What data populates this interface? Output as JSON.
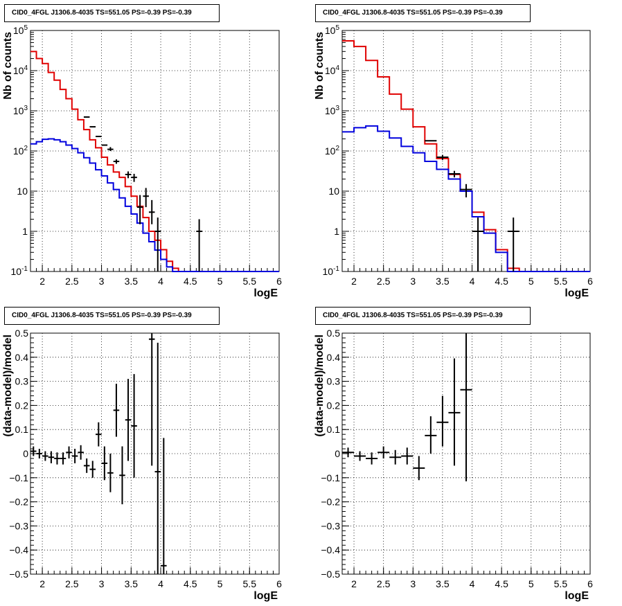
{
  "chart_data": [
    {
      "id": "p1",
      "type": "step",
      "title": "CID0_4FGL J1306.8-4035 TS=551.05 PS=-0.39 PS=-0.39",
      "xlabel": "logE",
      "ylabel": "Nb of counts",
      "xlim": [
        1.8,
        6
      ],
      "ylim": [
        0.1,
        100000
      ],
      "yscale": "log",
      "grid": true,
      "x_ticks": [
        "2",
        "2.5",
        "3",
        "3.5",
        "4",
        "4.5",
        "5",
        "5.5",
        "6"
      ],
      "y_ticks": [
        "10^-1",
        "1",
        "10",
        "10^2",
        "10^3",
        "10^4",
        "10^5"
      ],
      "colors": {
        "total": "#e00000",
        "source": "#0000dd",
        "data": "#000000"
      },
      "series": [
        {
          "role": "total",
          "x_edges": [
            1.8,
            1.9,
            2.0,
            2.1,
            2.2,
            2.3,
            2.4,
            2.5,
            2.6,
            2.7,
            2.8,
            2.9,
            3.0,
            3.1,
            3.2,
            3.3,
            3.4,
            3.5,
            3.6,
            3.7,
            3.8,
            3.9,
            4.0,
            4.1,
            4.2,
            4.3,
            4.4,
            4.5,
            4.6,
            6.0
          ],
          "values": [
            30000,
            20000,
            15000,
            9000,
            5800,
            3400,
            2000,
            1100,
            600,
            340,
            190,
            120,
            70,
            45,
            30,
            22,
            13,
            7.5,
            4.2,
            2.2,
            1.0,
            0.6,
            0.35,
            0.18,
            0.12,
            0.1,
            0.1,
            0.1,
            0.1
          ]
        },
        {
          "role": "source",
          "x_edges": [
            1.8,
            1.9,
            2.0,
            2.1,
            2.2,
            2.3,
            2.4,
            2.5,
            2.6,
            2.7,
            2.8,
            2.9,
            3.0,
            3.1,
            3.2,
            3.3,
            3.4,
            3.5,
            3.6,
            3.7,
            3.8,
            3.9,
            4.0,
            4.1,
            4.2,
            4.3,
            4.4,
            4.5,
            4.6,
            6.0
          ],
          "values": [
            150,
            170,
            195,
            200,
            190,
            170,
            140,
            115,
            90,
            68,
            50,
            34,
            24,
            16,
            11,
            6.8,
            4.2,
            2.7,
            1.6,
            0.9,
            0.55,
            0.34,
            0.2,
            0.13,
            0.1,
            0.1,
            0.1,
            0.1,
            0.1
          ]
        }
      ],
      "points": [
        {
          "x": 2.75,
          "y": 700,
          "xerr": 0.05,
          "ylo": 700,
          "yhi": 700
        },
        {
          "x": 2.85,
          "y": 400,
          "xerr": 0.05,
          "ylo": 400,
          "yhi": 400
        },
        {
          "x": 2.95,
          "y": 230,
          "xerr": 0.05,
          "ylo": 230,
          "yhi": 230
        },
        {
          "x": 3.05,
          "y": 140,
          "xerr": 0.05,
          "ylo": 140,
          "yhi": 140
        },
        {
          "x": 3.15,
          "y": 110,
          "xerr": 0.05,
          "ylo": 100,
          "yhi": 125
        },
        {
          "x": 3.25,
          "y": 55,
          "xerr": 0.05,
          "ylo": 48,
          "yhi": 62
        },
        {
          "x": 3.45,
          "y": 26,
          "xerr": 0.05,
          "ylo": 21,
          "yhi": 31
        },
        {
          "x": 3.55,
          "y": 22,
          "xerr": 0.05,
          "ylo": 17,
          "yhi": 27
        },
        {
          "x": 3.65,
          "y": 4,
          "xerr": 0.05,
          "ylo": 1.5,
          "yhi": 8
        },
        {
          "x": 3.75,
          "y": 7.5,
          "xerr": 0.05,
          "ylo": 4,
          "yhi": 12
        },
        {
          "x": 3.85,
          "y": 3,
          "xerr": 0.05,
          "ylo": 1.5,
          "yhi": 6
        },
        {
          "x": 3.95,
          "y": 1,
          "xerr": 0.05,
          "ylo": 0.1,
          "yhi": 2.2
        },
        {
          "x": 4.65,
          "y": 1,
          "xerr": 0.05,
          "ylo": 0.1,
          "yhi": 2
        }
      ]
    },
    {
      "id": "p2",
      "type": "step",
      "title": "CID0_4FGL J1306.8-4035 TS=551.05 PS=-0.39 PS=-0.39",
      "xlabel": "logE",
      "ylabel": "Nb of counts",
      "xlim": [
        1.8,
        6
      ],
      "ylim": [
        0.1,
        100000
      ],
      "yscale": "log",
      "grid": true,
      "x_ticks": [
        "2",
        "2.5",
        "3",
        "3.5",
        "4",
        "4.5",
        "5",
        "5.5",
        "6"
      ],
      "y_ticks": [
        "10^-1",
        "1",
        "10",
        "10^2",
        "10^3",
        "10^4",
        "10^5"
      ],
      "colors": {
        "total": "#e00000",
        "source": "#0000dd",
        "data": "#000000"
      },
      "series": [
        {
          "role": "total",
          "x_edges": [
            1.8,
            2.0,
            2.2,
            2.4,
            2.6,
            2.8,
            3.0,
            3.2,
            3.4,
            3.6,
            3.8,
            4.0,
            4.2,
            4.4,
            4.6,
            4.8,
            6.0
          ],
          "values": [
            55000,
            40000,
            18000,
            7000,
            2600,
            1100,
            400,
            150,
            65,
            26,
            10,
            3,
            1.1,
            0.35,
            0.12,
            0.1
          ]
        },
        {
          "role": "source",
          "x_edges": [
            1.8,
            2.0,
            2.2,
            2.4,
            2.6,
            2.8,
            3.0,
            3.2,
            3.4,
            3.6,
            3.8,
            4.0,
            4.2,
            4.4,
            4.6,
            4.8,
            6.0
          ],
          "values": [
            300,
            380,
            420,
            310,
            210,
            130,
            90,
            55,
            35,
            20,
            10,
            2.3,
            0.9,
            0.3,
            0.1,
            0.1
          ]
        }
      ],
      "points": [
        {
          "x": 3.3,
          "y": 180,
          "xerr": 0.1,
          "ylo": 180,
          "yhi": 180
        },
        {
          "x": 3.5,
          "y": 70,
          "xerr": 0.1,
          "ylo": 60,
          "yhi": 80
        },
        {
          "x": 3.7,
          "y": 27,
          "xerr": 0.1,
          "ylo": 22,
          "yhi": 32
        },
        {
          "x": 3.9,
          "y": 11,
          "xerr": 0.1,
          "ylo": 7,
          "yhi": 15
        },
        {
          "x": 4.1,
          "y": 1,
          "xerr": 0.1,
          "ylo": 0.1,
          "yhi": 2.2
        },
        {
          "x": 4.7,
          "y": 1,
          "xerr": 0.1,
          "ylo": 0.1,
          "yhi": 2.2
        }
      ]
    },
    {
      "id": "p3",
      "type": "errorbar",
      "title": "CID0_4FGL J1306.8-4035 TS=551.05 PS=-0.39 PS=-0.39",
      "xlabel": "logE",
      "ylabel": "(data-model)/model",
      "xlim": [
        1.8,
        6
      ],
      "ylim": [
        -0.5,
        0.5
      ],
      "grid": true,
      "x_ticks": [
        "2",
        "2.5",
        "3",
        "3.5",
        "4",
        "4.5",
        "5",
        "5.5",
        "6"
      ],
      "y_ticks": [
        "−0.5",
        "−0.4",
        "−0.3",
        "−0.2",
        "−0.1",
        "0",
        "0.1",
        "0.2",
        "0.3",
        "0.4",
        "0.5"
      ],
      "points": [
        {
          "x": 1.85,
          "y": 0.01,
          "xerr": 0.05,
          "ylo": -0.01,
          "yhi": 0.03
        },
        {
          "x": 1.95,
          "y": 0.0,
          "xerr": 0.05,
          "ylo": -0.02,
          "yhi": 0.02
        },
        {
          "x": 2.05,
          "y": -0.01,
          "xerr": 0.05,
          "ylo": -0.03,
          "yhi": 0.01
        },
        {
          "x": 2.15,
          "y": -0.015,
          "xerr": 0.05,
          "ylo": -0.04,
          "yhi": 0.01
        },
        {
          "x": 2.25,
          "y": -0.02,
          "xerr": 0.05,
          "ylo": -0.045,
          "yhi": 0.005
        },
        {
          "x": 2.35,
          "y": -0.02,
          "xerr": 0.05,
          "ylo": -0.045,
          "yhi": 0.005
        },
        {
          "x": 2.45,
          "y": 0.005,
          "xerr": 0.05,
          "ylo": -0.02,
          "yhi": 0.03
        },
        {
          "x": 2.55,
          "y": -0.01,
          "xerr": 0.05,
          "ylo": -0.04,
          "yhi": 0.02
        },
        {
          "x": 2.65,
          "y": 0.005,
          "xerr": 0.05,
          "ylo": -0.025,
          "yhi": 0.035
        },
        {
          "x": 2.75,
          "y": -0.05,
          "xerr": 0.05,
          "ylo": -0.08,
          "yhi": -0.02
        },
        {
          "x": 2.85,
          "y": -0.065,
          "xerr": 0.05,
          "ylo": -0.1,
          "yhi": -0.03
        },
        {
          "x": 2.95,
          "y": 0.08,
          "xerr": 0.05,
          "ylo": 0.03,
          "yhi": 0.13
        },
        {
          "x": 3.05,
          "y": -0.04,
          "xerr": 0.05,
          "ylo": -0.11,
          "yhi": 0.03
        },
        {
          "x": 3.15,
          "y": -0.08,
          "xerr": 0.05,
          "ylo": -0.16,
          "yhi": 0.0
        },
        {
          "x": 3.25,
          "y": 0.18,
          "xerr": 0.05,
          "ylo": 0.07,
          "yhi": 0.29
        },
        {
          "x": 3.35,
          "y": -0.09,
          "xerr": 0.05,
          "ylo": -0.21,
          "yhi": 0.03
        },
        {
          "x": 3.45,
          "y": 0.14,
          "xerr": 0.05,
          "ylo": -0.03,
          "yhi": 0.31
        },
        {
          "x": 3.55,
          "y": 0.115,
          "xerr": 0.05,
          "ylo": -0.1,
          "yhi": 0.33
        },
        {
          "x": 3.85,
          "y": 0.475,
          "xerr": 0.05,
          "ylo": -0.05,
          "yhi": 0.5
        },
        {
          "x": 3.95,
          "y": -0.075,
          "xerr": 0.05,
          "ylo": -0.5,
          "yhi": 0.46
        },
        {
          "x": 4.05,
          "y": -0.465,
          "xerr": 0.05,
          "ylo": -0.5,
          "yhi": 0.065
        }
      ]
    },
    {
      "id": "p4",
      "type": "errorbar",
      "title": "CID0_4FGL J1306.8-4035 TS=551.05 PS=-0.39 PS=-0.39",
      "xlabel": "logE",
      "ylabel": "(data-model)/model",
      "xlim": [
        1.8,
        6
      ],
      "ylim": [
        -0.5,
        0.5
      ],
      "grid": true,
      "x_ticks": [
        "2",
        "2.5",
        "3",
        "3.5",
        "4",
        "4.5",
        "5",
        "5.5",
        "6"
      ],
      "y_ticks": [
        "−0.5",
        "−0.4",
        "−0.3",
        "−0.2",
        "−0.1",
        "0",
        "0.1",
        "0.2",
        "0.3",
        "0.4",
        "0.5"
      ],
      "points": [
        {
          "x": 1.9,
          "y": 0.005,
          "xerr": 0.1,
          "ylo": -0.015,
          "yhi": 0.025
        },
        {
          "x": 2.1,
          "y": -0.01,
          "xerr": 0.1,
          "ylo": -0.03,
          "yhi": 0.01
        },
        {
          "x": 2.3,
          "y": -0.02,
          "xerr": 0.1,
          "ylo": -0.045,
          "yhi": 0.005
        },
        {
          "x": 2.5,
          "y": 0.005,
          "xerr": 0.1,
          "ylo": -0.02,
          "yhi": 0.03
        },
        {
          "x": 2.7,
          "y": -0.015,
          "xerr": 0.1,
          "ylo": -0.045,
          "yhi": 0.015
        },
        {
          "x": 2.9,
          "y": -0.01,
          "xerr": 0.1,
          "ylo": -0.045,
          "yhi": 0.025
        },
        {
          "x": 3.1,
          "y": -0.06,
          "xerr": 0.1,
          "ylo": -0.11,
          "yhi": -0.01
        },
        {
          "x": 3.3,
          "y": 0.075,
          "xerr": 0.1,
          "ylo": 0.0,
          "yhi": 0.155
        },
        {
          "x": 3.5,
          "y": 0.13,
          "xerr": 0.1,
          "ylo": 0.03,
          "yhi": 0.24
        },
        {
          "x": 3.7,
          "y": 0.17,
          "xerr": 0.1,
          "ylo": -0.05,
          "yhi": 0.395
        },
        {
          "x": 3.9,
          "y": 0.265,
          "xerr": 0.1,
          "ylo": -0.115,
          "yhi": 0.5
        }
      ]
    }
  ]
}
